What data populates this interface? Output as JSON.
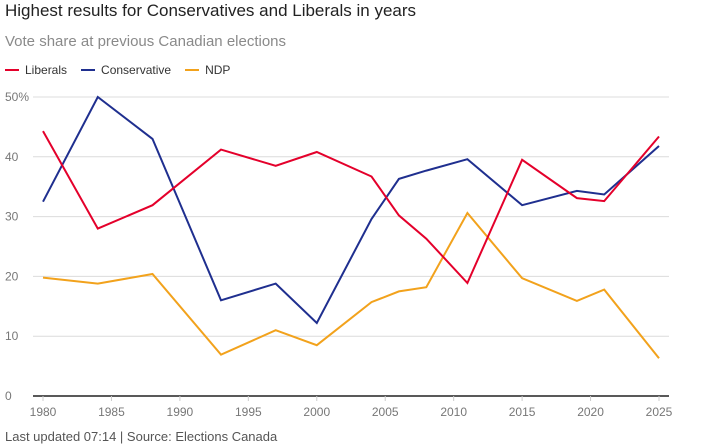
{
  "chart_data": {
    "type": "line",
    "title": "Highest results for Conservatives and Liberals in years",
    "subtitle": "Vote share at previous Canadian elections",
    "xlabel": "",
    "ylabel": "",
    "x": [
      1980,
      1984,
      1988,
      1993,
      1997,
      2000,
      2004,
      2006,
      2008,
      2011,
      2015,
      2019,
      2021,
      2025
    ],
    "xlim": [
      1980,
      2025.7
    ],
    "ylim": [
      0,
      50
    ],
    "xticks": [
      "1980",
      "1985",
      "1990",
      "1995",
      "2000",
      "2005",
      "2010",
      "2015",
      "2020",
      "2025"
    ],
    "xtick_values": [
      1980,
      1985,
      1990,
      1995,
      2000,
      2005,
      2010,
      2015,
      2020,
      2025
    ],
    "yticks": [
      "0",
      "10",
      "20",
      "30",
      "40",
      "50%"
    ],
    "ytick_values": [
      0,
      10,
      20,
      30,
      40,
      50
    ],
    "grid": true,
    "legend_position": "top-left",
    "series": [
      {
        "name": "Liberals",
        "color": "#e4002b",
        "values": [
          44.3,
          28.0,
          31.9,
          41.2,
          38.5,
          40.8,
          36.7,
          30.2,
          26.3,
          18.9,
          39.5,
          33.1,
          32.6,
          43.4
        ]
      },
      {
        "name": "Conservative",
        "color": "#1f2f8f",
        "values": [
          32.5,
          50.0,
          43.0,
          16.0,
          18.8,
          12.2,
          29.6,
          36.3,
          37.7,
          39.6,
          31.9,
          34.3,
          33.7,
          41.8
        ]
      },
      {
        "name": "NDP",
        "color": "#f2a21c",
        "values": [
          19.8,
          18.8,
          20.4,
          6.9,
          11.0,
          8.5,
          15.7,
          17.5,
          18.2,
          30.6,
          19.7,
          15.9,
          17.8,
          6.3
        ]
      }
    ]
  },
  "footer": "Last updated 07:14 | Source: Elections Canada"
}
